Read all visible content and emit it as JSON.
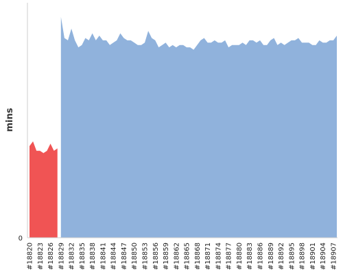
{
  "chart_data": {
    "type": "area",
    "title": "",
    "xlabel": "",
    "ylabel": "mins",
    "ylim": [
      0,
      100
    ],
    "y_ticks": [
      "0"
    ],
    "grid": false,
    "legend": "none",
    "colors": {
      "fail": "#f05454",
      "success": "#90b2dc"
    },
    "x": [
      "#18820",
      "#18821",
      "#18822",
      "#18823",
      "#18824",
      "#18825",
      "#18826",
      "#18827",
      "#18828",
      "#18829",
      "#18830",
      "#18831",
      "#18832",
      "#18833",
      "#18834",
      "#18835",
      "#18836",
      "#18837",
      "#18838",
      "#18839",
      "#18840",
      "#18841",
      "#18842",
      "#18843",
      "#18844",
      "#18845",
      "#18846",
      "#18847",
      "#18848",
      "#18849",
      "#18850",
      "#18851",
      "#18852",
      "#18853",
      "#18854",
      "#18855",
      "#18856",
      "#18857",
      "#18858",
      "#18859",
      "#18860",
      "#18861",
      "#18862",
      "#18863",
      "#18864",
      "#18865",
      "#18866",
      "#18867",
      "#18868",
      "#18869",
      "#18870",
      "#18871",
      "#18872",
      "#18873",
      "#18874",
      "#18875",
      "#18876",
      "#18877",
      "#18878",
      "#18879",
      "#18880",
      "#18881",
      "#18882",
      "#18883",
      "#18884",
      "#18885",
      "#18886",
      "#18887",
      "#18888",
      "#18889",
      "#18890",
      "#18891",
      "#18892",
      "#18893",
      "#18894",
      "#18895",
      "#18896",
      "#18897",
      "#18898",
      "#18899",
      "#18900",
      "#18901",
      "#18902",
      "#18903",
      "#18904",
      "#18905",
      "#18906",
      "#18907",
      "#18908"
    ],
    "x_tick_labels": [
      "#18820",
      "#18823",
      "#18826",
      "#18829",
      "#18832",
      "#18835",
      "#18838",
      "#18841",
      "#18844",
      "#18847",
      "#18850",
      "#18853",
      "#18856",
      "#18859",
      "#18862",
      "#18865",
      "#18868",
      "#18871",
      "#18874",
      "#18877",
      "#18880",
      "#18883",
      "#18886",
      "#18889",
      "#18892",
      "#18895",
      "#18898",
      "#18901",
      "#18904",
      "#18907"
    ],
    "values": [
      39,
      41,
      37,
      37,
      36,
      37,
      40,
      37,
      38,
      94,
      85,
      84,
      89,
      84,
      81,
      82,
      85,
      84,
      87,
      84,
      86,
      84,
      84,
      82,
      83,
      84,
      87,
      85,
      84,
      84,
      83,
      82,
      82,
      83,
      88,
      85,
      84,
      81,
      82,
      83,
      81,
      82,
      81,
      82,
      82,
      81,
      81,
      80,
      82,
      84,
      85,
      83,
      83,
      84,
      83,
      83,
      84,
      81,
      82,
      82,
      82,
      83,
      82,
      84,
      84,
      83,
      84,
      82,
      82,
      84,
      85,
      82,
      83,
      82,
      83,
      84,
      84,
      85,
      83,
      83,
      83,
      82,
      82,
      84,
      83,
      83,
      84,
      84,
      86
    ],
    "status": [
      "fail",
      "fail",
      "fail",
      "fail",
      "fail",
      "fail",
      "fail",
      "fail",
      "fail",
      "success",
      "success",
      "success",
      "success",
      "success",
      "success",
      "success",
      "success",
      "success",
      "success",
      "success",
      "success",
      "success",
      "success",
      "success",
      "success",
      "success",
      "success",
      "success",
      "success",
      "success",
      "success",
      "success",
      "success",
      "success",
      "success",
      "success",
      "success",
      "success",
      "success",
      "success",
      "success",
      "success",
      "success",
      "success",
      "success",
      "success",
      "success",
      "success",
      "success",
      "success",
      "success",
      "success",
      "success",
      "success",
      "success",
      "success",
      "success",
      "success",
      "success",
      "success",
      "success",
      "success",
      "success",
      "success",
      "success",
      "success",
      "success",
      "success",
      "success",
      "success",
      "success",
      "success",
      "success",
      "success",
      "success",
      "success",
      "success",
      "success",
      "success",
      "success",
      "success",
      "success",
      "success",
      "success",
      "success",
      "success",
      "success",
      "success",
      "success"
    ]
  }
}
